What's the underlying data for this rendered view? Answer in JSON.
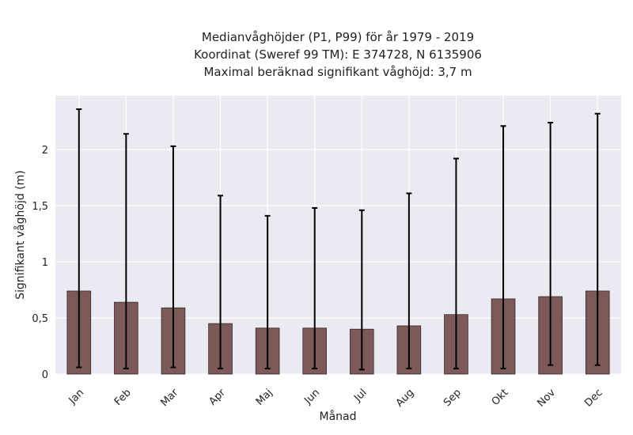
{
  "chart_data": {
    "type": "bar",
    "title_lines": [
      "Medianvåghöjder (P1, P99) för år 1979 - 2019",
      "Koordinat (Sweref 99 TM): E 374728, N 6135906",
      "Maximal beräknad signifikant våghöjd: 3,7 m"
    ],
    "xlabel": "Månad",
    "ylabel": "Signifikant våghöjd (m)",
    "categories": [
      "Jan",
      "Feb",
      "Mar",
      "Apr",
      "Maj",
      "Jun",
      "Jul",
      "Aug",
      "Sep",
      "Okt",
      "Nov",
      "Dec"
    ],
    "values": [
      0.74,
      0.64,
      0.59,
      0.45,
      0.41,
      0.41,
      0.4,
      0.43,
      0.53,
      0.67,
      0.69,
      0.74
    ],
    "error_low": [
      0.06,
      0.05,
      0.06,
      0.05,
      0.05,
      0.05,
      0.04,
      0.05,
      0.05,
      0.05,
      0.08,
      0.08
    ],
    "error_high": [
      2.36,
      2.14,
      2.03,
      1.59,
      1.41,
      1.48,
      1.46,
      1.61,
      1.92,
      2.21,
      2.24,
      2.32
    ],
    "ylim": [
      0,
      2.48
    ],
    "yticks": [
      0,
      0.5,
      1,
      1.5,
      2
    ],
    "ytick_labels": [
      "0",
      "0,5",
      "1",
      "1,5",
      "2"
    ],
    "grid": true,
    "colors": {
      "bar": "#7d5a5a",
      "bar_edge": "#3a2626",
      "error": "#000000",
      "plot_bg": "#eaeaf2",
      "grid": "#ffffff"
    }
  }
}
